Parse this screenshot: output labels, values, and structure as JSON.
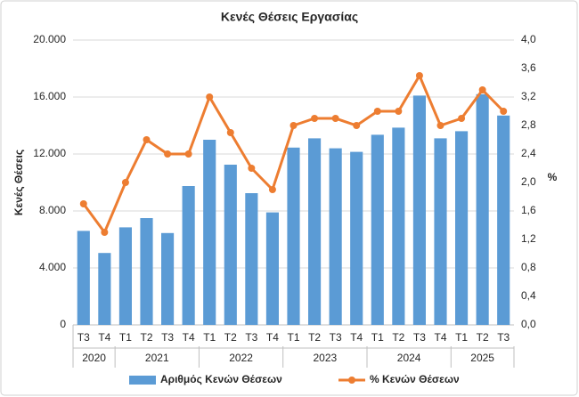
{
  "chart_data": {
    "type": "bar-line",
    "title": "Κενές Θέσεις Εργασίας",
    "y_label": "Κενές Θέσεις",
    "y2_label": "%",
    "groups": [
      {
        "label": "2020",
        "categories": [
          "T3",
          "T4"
        ]
      },
      {
        "label": "2021",
        "categories": [
          "T1",
          "T2",
          "T3",
          "T4"
        ]
      },
      {
        "label": "2022",
        "categories": [
          "T1",
          "T2",
          "T3",
          "T4"
        ]
      },
      {
        "label": "2023",
        "categories": [
          "T1",
          "T2",
          "T3",
          "T4"
        ]
      },
      {
        "label": "2024",
        "categories": [
          "T1",
          "T2",
          "T3",
          "T4"
        ]
      },
      {
        "label": "2025",
        "categories": [
          "T1",
          "T2",
          "T3"
        ]
      }
    ],
    "series": [
      {
        "name": "Αριθμός Κενών Θέσεων",
        "type": "bar",
        "color": "#5b9bd5",
        "values": [
          6600,
          5050,
          6850,
          7500,
          6450,
          9750,
          13000,
          11250,
          9250,
          7900,
          12450,
          13100,
          12400,
          12150,
          13350,
          13850,
          16100,
          13100,
          13600,
          16200,
          14700
        ]
      },
      {
        "name": "% Κενών Θέσεων",
        "type": "line",
        "axis": "y2",
        "color": "#ed7d31",
        "values": [
          1.7,
          1.3,
          2.0,
          2.6,
          2.4,
          2.4,
          3.2,
          2.7,
          2.2,
          1.9,
          2.8,
          2.9,
          2.9,
          2.8,
          3.0,
          3.0,
          3.5,
          2.8,
          2.9,
          3.3,
          3.0
        ]
      }
    ],
    "ylim": [
      0,
      20000
    ],
    "yticks": [
      0,
      {
        "value": 4000,
        "label": "4.000"
      },
      {
        "value": 8000,
        "label": "8.000"
      },
      {
        "value": 12000,
        "label": "12.000"
      },
      {
        "value": 16000,
        "label": "16.000"
      },
      {
        "value": 20000,
        "label": "20.000"
      }
    ],
    "y2lim": [
      0,
      4
    ],
    "y2ticks": [
      {
        "value": 0,
        "label": "0,0"
      },
      {
        "value": 0.4,
        "label": "0,4"
      },
      {
        "value": 0.8,
        "label": "0,8"
      },
      {
        "value": 1.2,
        "label": "1,2"
      },
      {
        "value": 1.6,
        "label": "1,6"
      },
      {
        "value": 2.0,
        "label": "2,0"
      },
      {
        "value": 2.4,
        "label": "2,4"
      },
      {
        "value": 2.8,
        "label": "2,8"
      },
      {
        "value": 3.2,
        "label": "3,2"
      },
      {
        "value": 3.6,
        "label": "3,6"
      },
      {
        "value": 4.0,
        "label": "4,0"
      }
    ],
    "grid": true
  }
}
